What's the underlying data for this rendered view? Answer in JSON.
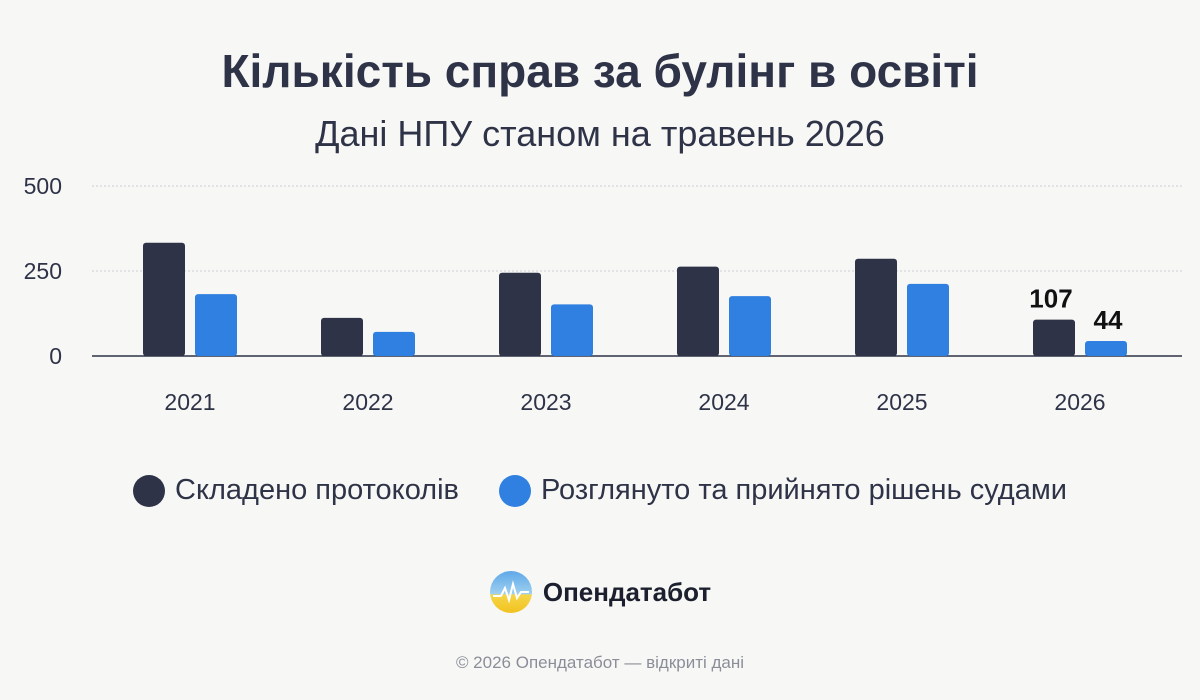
{
  "title": "Кількість справ за булінг в освіті",
  "subtitle": "Дані НПУ станом на травень 2026",
  "chart_data": {
    "type": "bar",
    "categories": [
      "2021",
      "2022",
      "2023",
      "2024",
      "2025",
      "2026"
    ],
    "series": [
      {
        "name": "Складено протоколів",
        "color": "#2f3347",
        "values": [
          333,
          112,
          245,
          263,
          286,
          107
        ]
      },
      {
        "name": "Розглянуто та прийнято рішень судами",
        "color": "#2f80e0",
        "values": [
          182,
          71,
          152,
          176,
          212,
          44
        ]
      }
    ],
    "yticks": [
      "500",
      "250",
      "0"
    ],
    "ylim": [
      0,
      500
    ],
    "grid": true,
    "data_labels": [
      {
        "series": 0,
        "category": "2026",
        "text": "107"
      },
      {
        "series": 1,
        "category": "2026",
        "text": "44"
      }
    ],
    "legend_position": "bottom"
  },
  "brand": {
    "name": "Опендатабот"
  },
  "footer": "© 2026 Опендатабот — відкриті дані"
}
